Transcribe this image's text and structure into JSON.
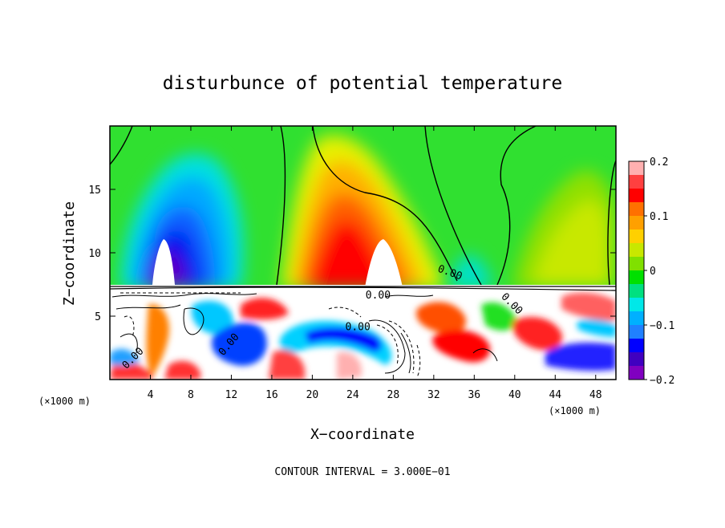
{
  "chart_data": {
    "type": "heatmap",
    "title": "disturbunce of potential temperature",
    "xlabel": "X−coordinate",
    "ylabel": "Z−coordinate",
    "x_unit": "(×1000 m)",
    "z_unit": "(×1000 m)",
    "xlim": [
      0,
      50
    ],
    "zlim": [
      0,
      20
    ],
    "x_ticks": [
      4,
      8,
      12,
      16,
      20,
      24,
      28,
      32,
      36,
      40,
      44,
      48
    ],
    "z_ticks": [
      5,
      10,
      15
    ],
    "colorbar": {
      "range": [
        -0.2,
        0.2
      ],
      "tick_labels": [
        "0.2",
        "0.1",
        "0",
        "−0.1",
        "−0.2"
      ],
      "tick_values": [
        0.2,
        0.1,
        0,
        -0.1,
        -0.2
      ],
      "colors": [
        "#ffb0b0",
        "#ff4040",
        "#ff0000",
        "#ff7000",
        "#ffa000",
        "#ffd000",
        "#c8e800",
        "#80e000",
        "#00e000",
        "#00e080",
        "#00e8e8",
        "#00b0ff",
        "#2080ff",
        "#0000ff",
        "#4000c0",
        "#8000c0"
      ]
    },
    "contour_labels": [
      "0.00",
      "0.00",
      "0.00",
      "0.00",
      "0.00",
      "0.00"
    ],
    "contour_interval_label": "CONTOUR INTERVAL = 3.000E−01"
  }
}
